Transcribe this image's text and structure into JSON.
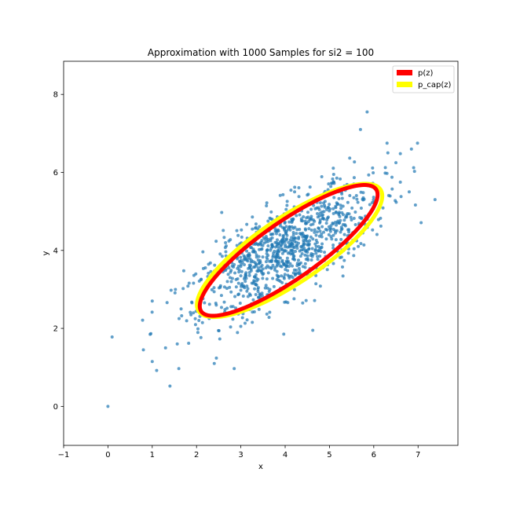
{
  "chart_data": {
    "type": "scatter",
    "title": "Approximation with 1000 Samples for si2 = 100",
    "xlabel": "x",
    "ylabel": "y",
    "xlim": [
      -1,
      7.9
    ],
    "ylim": [
      -1,
      8.85
    ],
    "xticks": [
      -1,
      0,
      1,
      2,
      3,
      4,
      5,
      6,
      7
    ],
    "yticks": [
      0,
      2,
      4,
      6,
      8
    ],
    "grid": false,
    "legend_position": "top-right",
    "point_color": "#1f77b4",
    "sample_count": 1000,
    "sample_mean": [
      4.0,
      4.0
    ],
    "sample_spread": {
      "major_sd": 1.28,
      "minor_sd": 0.5,
      "angle_deg": 37
    },
    "points": [
      {
        "x": 0.0,
        "y": 0.0
      },
      {
        "x": 1.4,
        "y": 0.52
      },
      {
        "x": 2.85,
        "y": 0.97
      },
      {
        "x": 0.8,
        "y": 1.45
      },
      {
        "x": 1.0,
        "y": 1.15
      },
      {
        "x": 1.1,
        "y": 0.92
      },
      {
        "x": 1.6,
        "y": 0.97
      },
      {
        "x": 1.0,
        "y": 2.7
      },
      {
        "x": 5.85,
        "y": 7.55
      },
      {
        "x": 5.7,
        "y": 7.1
      },
      {
        "x": 6.9,
        "y": 6.12
      },
      {
        "x": 6.85,
        "y": 6.6
      },
      {
        "x": 6.3,
        "y": 6.75
      },
      {
        "x": 6.5,
        "y": 6.25
      },
      {
        "x": 6.6,
        "y": 5.75
      },
      {
        "x": 6.8,
        "y": 5.5
      },
      {
        "x": 6.6,
        "y": 6.48
      },
      {
        "x": 2.4,
        "y": 1.1
      },
      {
        "x": 1.3,
        "y": 1.5
      }
    ],
    "series": [
      {
        "name": "p(z)",
        "color": "#ff0000",
        "type": "ellipse",
        "center": [
          4.08,
          4.0
        ],
        "semi_major": 2.52,
        "semi_minor": 0.7,
        "angle_deg": 39
      },
      {
        "name": "p_cap(z)",
        "color": "#ffff00",
        "type": "ellipse",
        "center": [
          4.1,
          4.0
        ],
        "semi_major": 2.58,
        "semi_minor": 0.8,
        "angle_deg": 38
      }
    ]
  }
}
